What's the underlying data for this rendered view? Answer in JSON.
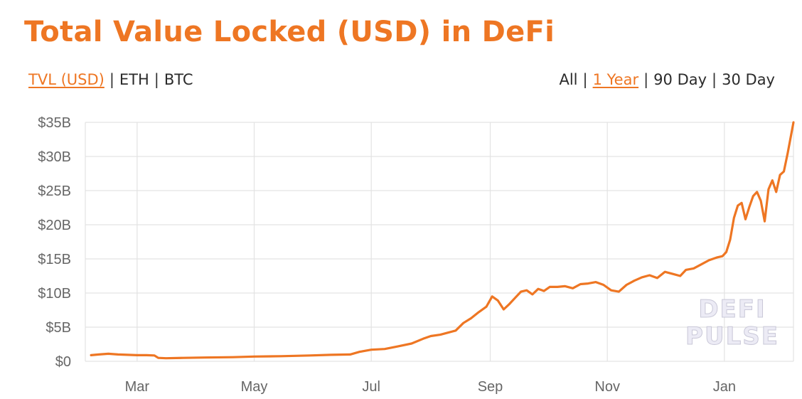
{
  "title": "Total Value Locked (USD) in DeFi",
  "colors": {
    "accent": "#ee7623",
    "grid": "#e3e3e3",
    "text": "#2b2b2b"
  },
  "toolbar": {
    "metrics": [
      {
        "label": "TVL (USD)",
        "active": true
      },
      {
        "label": "ETH",
        "active": false
      },
      {
        "label": "BTC",
        "active": false
      }
    ],
    "ranges": [
      {
        "label": "All",
        "active": false
      },
      {
        "label": "1 Year",
        "active": true
      },
      {
        "label": "90 Day",
        "active": false
      },
      {
        "label": "30 Day",
        "active": false
      }
    ]
  },
  "watermark": [
    "DEFI",
    "PULSE"
  ],
  "chart_data": {
    "type": "line",
    "title": "Total Value Locked (USD) in DeFi",
    "xlabel": "",
    "ylabel": "",
    "x_ticks": [
      "Mar",
      "May",
      "Jul",
      "Sep",
      "Nov",
      "Jan"
    ],
    "y_ticks": [
      "$0",
      "$5B",
      "$10B",
      "$15B",
      "$20B",
      "$25B",
      "$30B",
      "$35B"
    ],
    "ylim": [
      0,
      35
    ],
    "y_unit": "billion USD",
    "grid": true,
    "series": [
      {
        "color": "#ee7623",
        "points": [
          [
            "2020-02-06",
            0.9
          ],
          [
            "2020-02-10",
            1.0
          ],
          [
            "2020-02-15",
            1.1
          ],
          [
            "2020-02-20",
            1.0
          ],
          [
            "2020-02-25",
            0.95
          ],
          [
            "2020-03-01",
            0.9
          ],
          [
            "2020-03-06",
            0.9
          ],
          [
            "2020-03-10",
            0.85
          ],
          [
            "2020-03-12",
            0.5
          ],
          [
            "2020-03-16",
            0.45
          ],
          [
            "2020-03-25",
            0.5
          ],
          [
            "2020-04-05",
            0.55
          ],
          [
            "2020-04-20",
            0.6
          ],
          [
            "2020-05-01",
            0.7
          ],
          [
            "2020-05-15",
            0.75
          ],
          [
            "2020-05-30",
            0.85
          ],
          [
            "2020-06-10",
            0.95
          ],
          [
            "2020-06-20",
            1.0
          ],
          [
            "2020-06-25",
            1.4
          ],
          [
            "2020-07-01",
            1.7
          ],
          [
            "2020-07-08",
            1.8
          ],
          [
            "2020-07-15",
            2.2
          ],
          [
            "2020-07-22",
            2.6
          ],
          [
            "2020-07-28",
            3.3
          ],
          [
            "2020-08-01",
            3.7
          ],
          [
            "2020-08-06",
            3.9
          ],
          [
            "2020-08-10",
            4.2
          ],
          [
            "2020-08-14",
            4.5
          ],
          [
            "2020-08-18",
            5.6
          ],
          [
            "2020-08-22",
            6.3
          ],
          [
            "2020-08-26",
            7.2
          ],
          [
            "2020-08-30",
            8.0
          ],
          [
            "2020-09-02",
            9.5
          ],
          [
            "2020-09-05",
            8.9
          ],
          [
            "2020-09-08",
            7.6
          ],
          [
            "2020-09-11",
            8.4
          ],
          [
            "2020-09-14",
            9.3
          ],
          [
            "2020-09-17",
            10.2
          ],
          [
            "2020-09-20",
            10.4
          ],
          [
            "2020-09-23",
            9.8
          ],
          [
            "2020-09-26",
            10.6
          ],
          [
            "2020-09-29",
            10.3
          ],
          [
            "2020-10-02",
            10.9
          ],
          [
            "2020-10-06",
            10.9
          ],
          [
            "2020-10-10",
            11.0
          ],
          [
            "2020-10-14",
            10.7
          ],
          [
            "2020-10-18",
            11.3
          ],
          [
            "2020-10-22",
            11.4
          ],
          [
            "2020-10-26",
            11.6
          ],
          [
            "2020-10-30",
            11.2
          ],
          [
            "2020-11-03",
            10.4
          ],
          [
            "2020-11-07",
            10.2
          ],
          [
            "2020-11-11",
            11.2
          ],
          [
            "2020-11-15",
            11.8
          ],
          [
            "2020-11-19",
            12.3
          ],
          [
            "2020-11-23",
            12.6
          ],
          [
            "2020-11-27",
            12.2
          ],
          [
            "2020-12-01",
            13.1
          ],
          [
            "2020-12-05",
            12.8
          ],
          [
            "2020-12-09",
            12.5
          ],
          [
            "2020-12-12",
            13.4
          ],
          [
            "2020-12-16",
            13.6
          ],
          [
            "2020-12-20",
            14.2
          ],
          [
            "2020-12-24",
            14.8
          ],
          [
            "2020-12-28",
            15.2
          ],
          [
            "2020-12-31",
            15.4
          ],
          [
            "2021-01-02",
            16.0
          ],
          [
            "2021-01-04",
            17.8
          ],
          [
            "2021-01-06",
            21.0
          ],
          [
            "2021-01-08",
            22.8
          ],
          [
            "2021-01-10",
            23.2
          ],
          [
            "2021-01-12",
            20.8
          ],
          [
            "2021-01-14",
            22.6
          ],
          [
            "2021-01-16",
            24.2
          ],
          [
            "2021-01-18",
            24.8
          ],
          [
            "2021-01-20",
            23.5
          ],
          [
            "2021-01-22",
            20.5
          ],
          [
            "2021-01-24",
            25.2
          ],
          [
            "2021-01-26",
            26.5
          ],
          [
            "2021-01-28",
            24.8
          ],
          [
            "2021-01-30",
            27.3
          ],
          [
            "2021-02-01",
            27.8
          ],
          [
            "2021-02-03",
            30.5
          ],
          [
            "2021-02-05",
            33.5
          ],
          [
            "2021-02-06",
            35.0
          ]
        ]
      }
    ]
  }
}
